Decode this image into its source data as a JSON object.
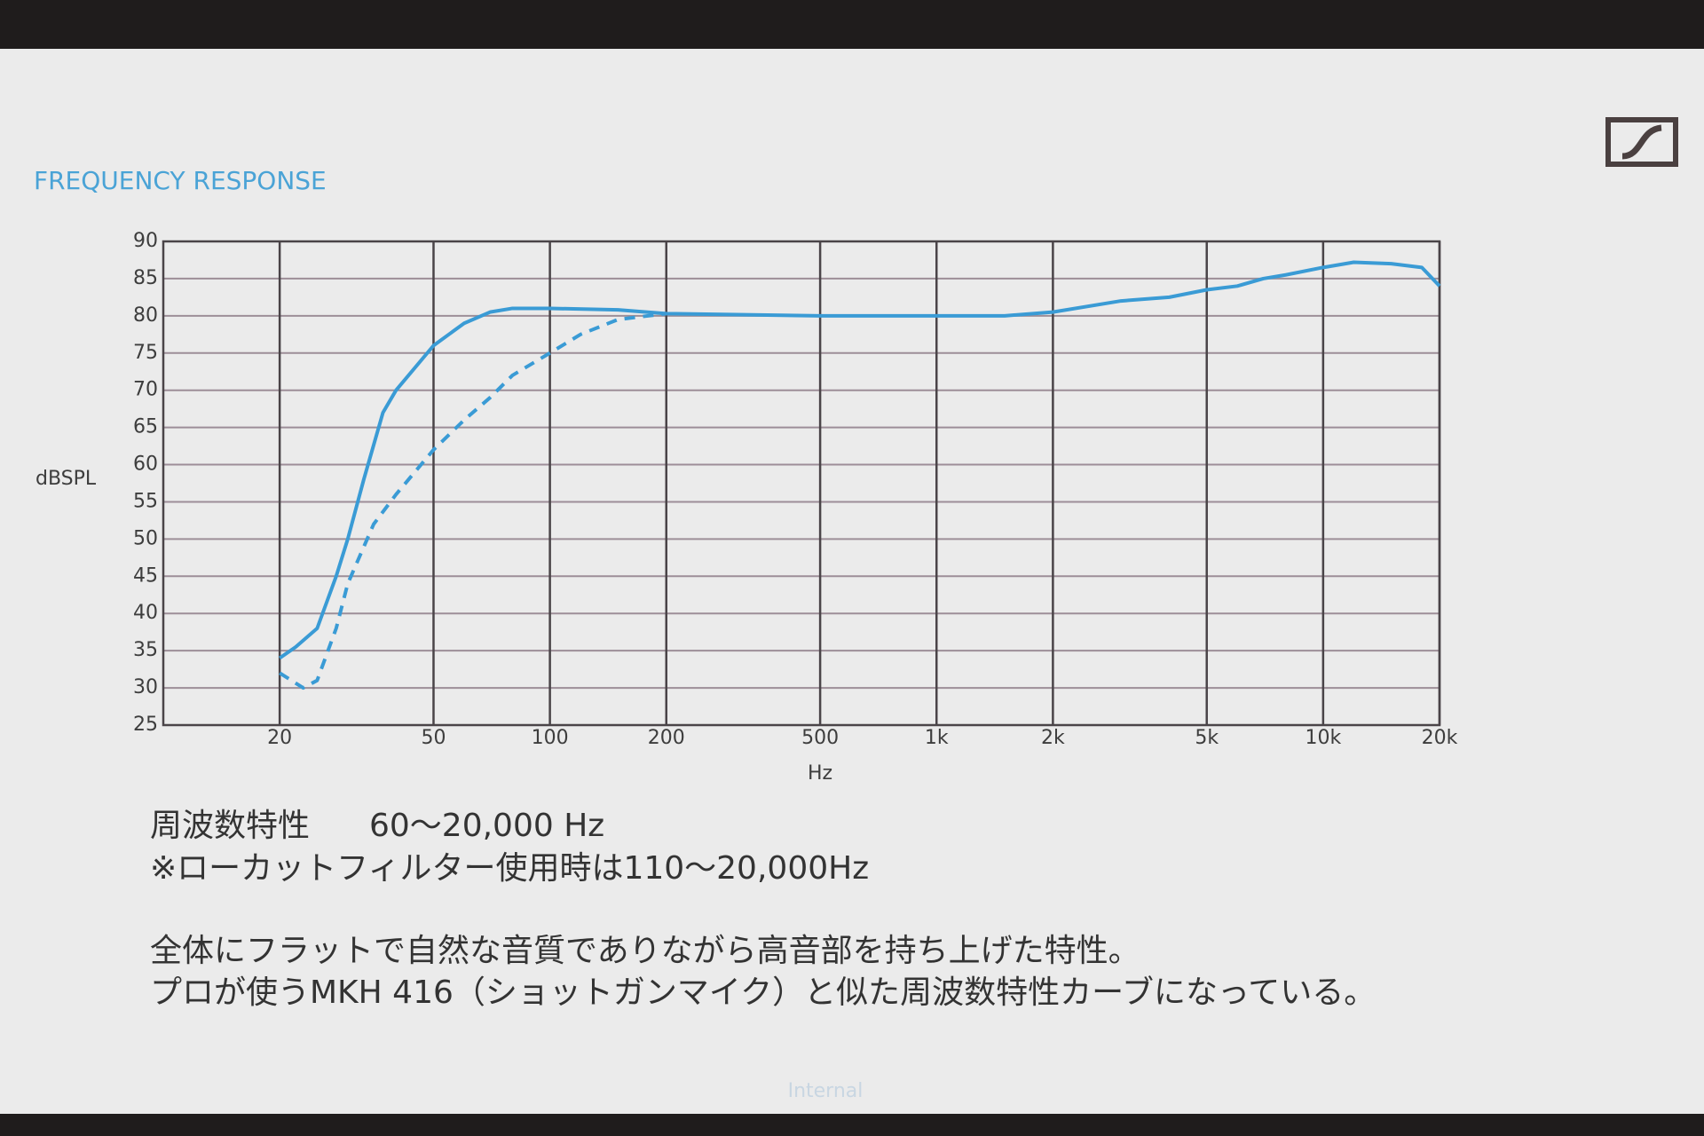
{
  "chart_data": {
    "type": "line",
    "title": "FREQUENCY RESPONSE",
    "ylabel": "dBSPL",
    "xlabel": "Hz",
    "xscale": "log",
    "grid": true,
    "xlim": [
      10,
      20000
    ],
    "xticks": [
      20,
      50,
      100,
      200,
      500,
      {
        "value": 1000,
        "label": "1k"
      },
      {
        "value": 2000,
        "label": "2k"
      },
      {
        "value": 5000,
        "label": "5k"
      },
      {
        "value": 10000,
        "label": "10k"
      },
      {
        "value": 20000,
        "label": "20k"
      }
    ],
    "ylim": [
      25,
      90
    ],
    "yticks": [
      25,
      30,
      35,
      40,
      45,
      50,
      55,
      60,
      65,
      70,
      75,
      80,
      85,
      90
    ],
    "series": [
      {
        "color": "#3a9bd5",
        "dash": false,
        "x": [
          20,
          22,
          25,
          28,
          30,
          33,
          37,
          40,
          50,
          60,
          70,
          80,
          100,
          150,
          200,
          500,
          1000,
          1500,
          2000,
          3000,
          4000,
          5000,
          6000,
          7000,
          8000,
          10000,
          12000,
          15000,
          18000,
          20000
        ],
        "values": [
          34,
          35.5,
          38,
          45,
          50,
          58,
          67,
          70,
          76,
          79,
          80.5,
          81,
          81,
          80.8,
          80.3,
          80,
          80,
          80,
          80.5,
          82,
          82.5,
          83.5,
          84,
          85,
          85.5,
          86.5,
          87.2,
          87,
          86.5,
          84
        ]
      },
      {
        "color": "#3a9bd5",
        "dash": true,
        "x": [
          20,
          23,
          25,
          28,
          30,
          35,
          40,
          50,
          60,
          70,
          80,
          100,
          120,
          150,
          200
        ],
        "values": [
          32,
          30,
          31,
          38,
          44,
          52,
          56,
          62,
          66,
          69,
          72,
          75,
          77.5,
          79.5,
          80.3
        ]
      }
    ]
  },
  "slide": {
    "spec_label": "周波数特性",
    "spec_value": "60〜20,000 Hz",
    "note": "※ローカットフィルター使用時は110〜20,000Hz",
    "body": [
      "全体にフラットで自然な音質でありながら高音部を持ち上げた特性。",
      "プロが使うMKH 416（ショットガンマイク）と似た周波数特性カーブになっている。"
    ],
    "footer": "Internal"
  }
}
